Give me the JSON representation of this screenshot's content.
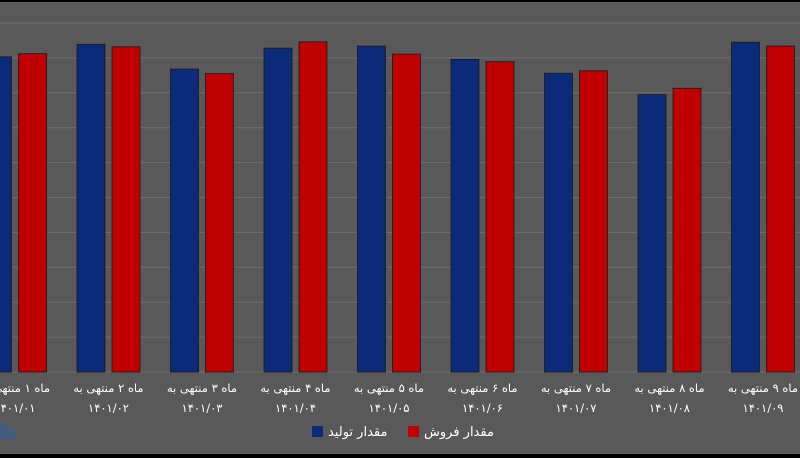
{
  "chart_data": {
    "type": "bar",
    "categories": [
      [
        "ماه ۱ منتهی به",
        "۱۴۰۱/۰۱"
      ],
      [
        "ماه ۲ منتهی به",
        "۱۴۰۱/۰۲"
      ],
      [
        "ماه ۳ منتهی به",
        "۱۴۰۱/۰۳"
      ],
      [
        "ماه ۴ منتهی به",
        "۱۴۰۱/۰۴"
      ],
      [
        "ماه ۵ منتهی به",
        "۱۴۰۱/۰۵"
      ],
      [
        "ماه ۶ منتهی به",
        "۱۴۰۱/۰۶"
      ],
      [
        "ماه ۷ منتهی به",
        "۱۴۰۱/۰۷"
      ],
      [
        "ماه ۸ منتهی به",
        "۱۴۰۱/۰۸"
      ],
      [
        "ماه ۹ منتهی به",
        "۱۴۰۱/۰۹"
      ]
    ],
    "series": [
      {
        "name": "مقدار تولید",
        "color": "#0c2a7a",
        "values": [
          0.903,
          0.939,
          0.868,
          0.928,
          0.934,
          0.896,
          0.856,
          0.795,
          0.945
        ]
      },
      {
        "name": "مقدار فروش",
        "color": "#c00000",
        "values": [
          0.912,
          0.932,
          0.855,
          0.946,
          0.911,
          0.889,
          0.863,
          0.813,
          0.934
        ]
      }
    ],
    "ylim": [
      0,
      1
    ],
    "grid": true,
    "legend_position": "bottom-center"
  },
  "watermark_text": "تجا"
}
